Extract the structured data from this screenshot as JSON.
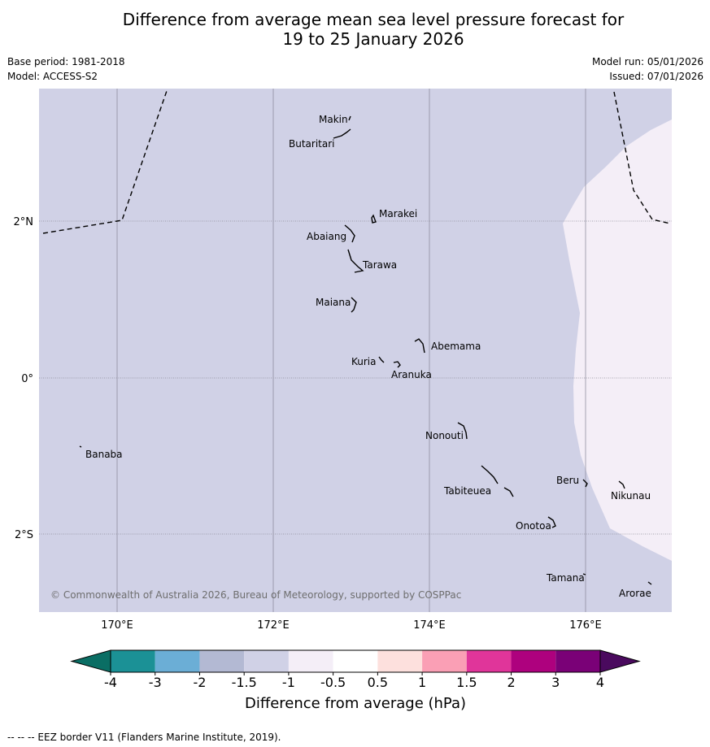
{
  "title_line1": "Difference from average mean sea level pressure forecast for",
  "title_line2": "19 to 25 January 2026",
  "base_period": "Base period: 1981-2018",
  "model": "Model: ACCESS-S2",
  "model_run": "Model run: 05/01/2026",
  "issued": "Issued: 07/01/2026",
  "map": {
    "lat_labels": [
      "2°N",
      "0°",
      "2°S"
    ],
    "lon_labels": [
      "170°E",
      "172°E",
      "174°E",
      "176°E"
    ],
    "places": [
      "Makin",
      "Butaritari",
      "Marakei",
      "Abaiang",
      "Tarawa",
      "Maiana",
      "Abemama",
      "Kuria",
      "Aranuka",
      "Banaba",
      "Nonouti",
      "Tabiteuea",
      "Beru",
      "Nikunau",
      "Onotoa",
      "Tamana",
      "Arorae"
    ],
    "copyright": "© Commonwealth of Australia 2026, Bureau of Meteorology, supported by COSPPac",
    "colors": {
      "anomaly_minus_1_5_to_minus_1": "#d0d1e6",
      "anomaly_minus_1_to_minus_0_5": "#f4eef7"
    }
  },
  "colorbar": {
    "ticks": [
      "-4",
      "-3",
      "-2",
      "-1.5",
      "-1",
      "-0.5",
      "0.5",
      "1",
      "1.5",
      "2",
      "3",
      "4"
    ],
    "colors": [
      "#1b9196",
      "#6baed6",
      "#b3b9d3",
      "#d0d1e6",
      "#f4eef7",
      "#ffffff",
      "#fde0dd",
      "#fa9fb5",
      "#e0359a",
      "#ae017e",
      "#7a0177"
    ],
    "under_color": "#0a6e64",
    "over_color": "#4a0a5e",
    "label": "Difference from average (hPa)"
  },
  "footer": "--  --  -- EEZ border V11 (Flanders Marine Institute, 2019)."
}
